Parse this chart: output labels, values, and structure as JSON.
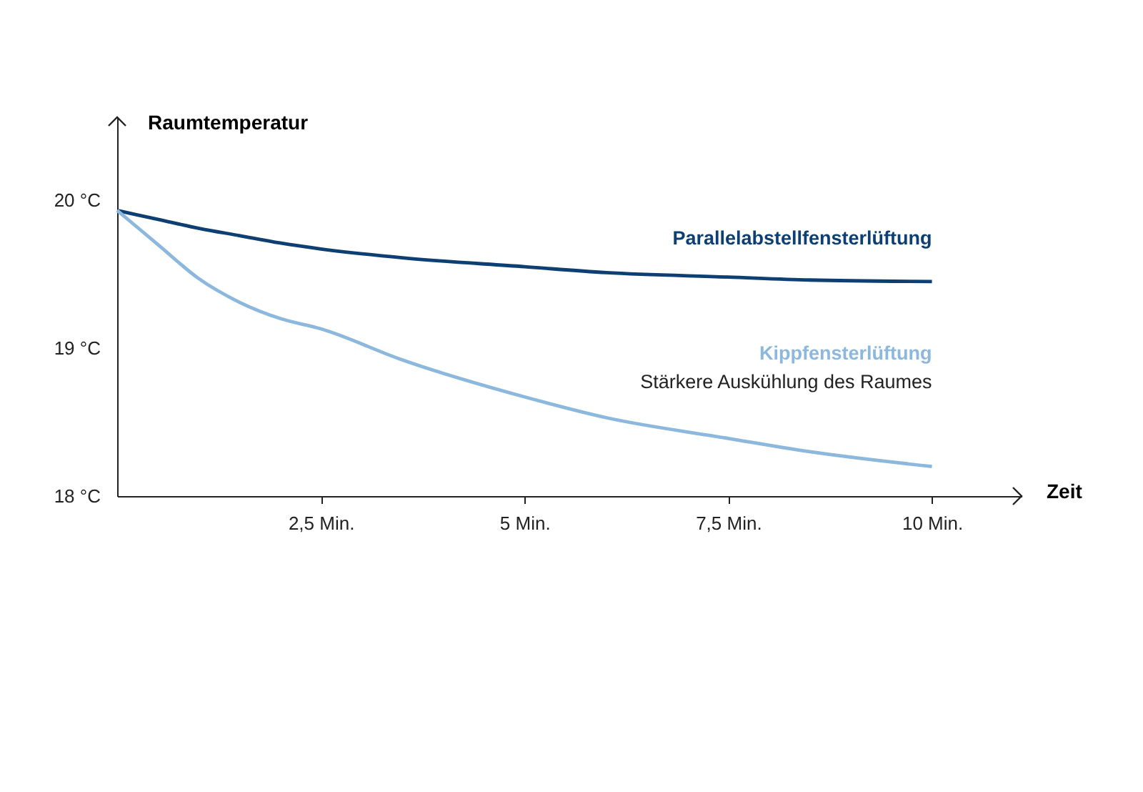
{
  "chart_data": {
    "type": "line",
    "xlabel": "Zeit",
    "ylabel": "Raumtemperatur",
    "x": [
      0,
      0.5,
      1,
      1.5,
      2,
      2.5,
      3.5,
      5,
      6,
      7.5,
      8.5,
      10
    ],
    "series": [
      {
        "name": "Parallelabstellfensterlüftung",
        "color": "#0d3f73",
        "values": [
          19.93,
          19.87,
          19.81,
          19.76,
          19.71,
          19.67,
          19.61,
          19.55,
          19.51,
          19.48,
          19.46,
          19.45
        ]
      },
      {
        "name": "Kippfensterlüftung",
        "color": "#8db8de",
        "values": [
          19.93,
          19.7,
          19.47,
          19.31,
          19.2,
          19.13,
          18.92,
          18.67,
          18.53,
          18.39,
          18.3,
          18.2
        ]
      }
    ],
    "xlim": [
      0,
      11.1
    ],
    "ylim": [
      18,
      20.56
    ],
    "xticks": [
      {
        "value": 2.5,
        "label": "2,5 Min."
      },
      {
        "value": 5,
        "label": "5 Min."
      },
      {
        "value": 7.5,
        "label": "7,5 Min."
      },
      {
        "value": 10,
        "label": "10 Min."
      }
    ],
    "yticks": [
      {
        "value": 18,
        "label": "18 °C"
      },
      {
        "value": 19,
        "label": "19 °C"
      },
      {
        "value": 20,
        "label": "20 °C"
      }
    ],
    "annotations": [
      "Stärkere Auskühlung des Raumes"
    ],
    "grid": false,
    "legend": false,
    "marker": "none",
    "line_style": "solid"
  }
}
